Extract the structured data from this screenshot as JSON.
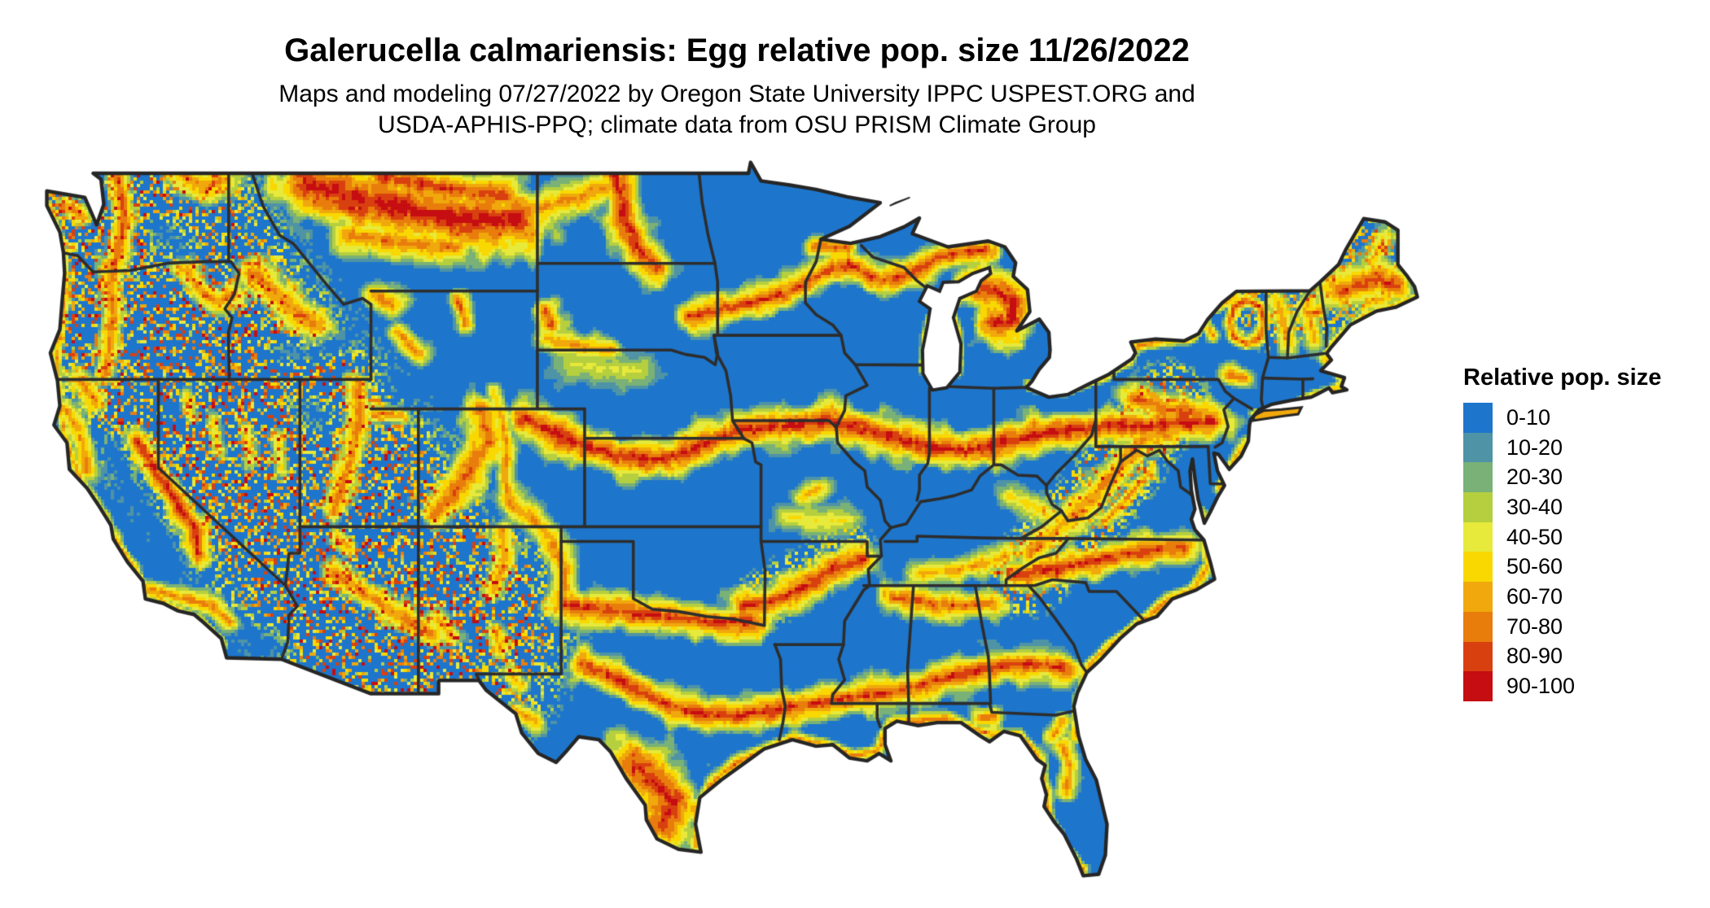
{
  "header": {
    "title": "Galerucella calmariensis: Egg relative pop. size 11/26/2022",
    "subtitle_line1": "Maps and modeling 07/27/2022 by Oregon State University IPPC USPEST.ORG and",
    "subtitle_line2": "USDA-APHIS-PPQ; climate data from OSU PRISM Climate Group"
  },
  "legend": {
    "title": "Relative pop. size",
    "entries": [
      {
        "label": "0-10",
        "color": "#1d76cc"
      },
      {
        "label": "10-20",
        "color": "#4f93a6"
      },
      {
        "label": "20-30",
        "color": "#79b177"
      },
      {
        "label": "30-40",
        "color": "#b5cf3f"
      },
      {
        "label": "40-50",
        "color": "#e7e93b"
      },
      {
        "label": "50-60",
        "color": "#f8d800"
      },
      {
        "label": "60-70",
        "color": "#f0a80c"
      },
      {
        "label": "70-80",
        "color": "#e87d0c"
      },
      {
        "label": "80-90",
        "color": "#d9400f"
      },
      {
        "label": "90-100",
        "color": "#c50d12"
      }
    ]
  },
  "map": {
    "type": "choropleth-raster",
    "region": "Continental United States",
    "value_name": "Relative pop. size",
    "value_range": [
      0,
      100
    ],
    "base_color": "#1d76cc",
    "state_border_color": "#2d2d2d",
    "coast_border_color": "#262626",
    "water_background_color": "#ffffff",
    "hotspot_regions": [
      "Northern Rockies / Montana high plains",
      "Missouri Coteau (North Dakota)",
      "Black Hills (SD)",
      "Upper Midwest belt (eastern SD - MN - WI - Upper MI)",
      "Northern Lower Michigan",
      "Central belt (Kansas - Missouri - Illinois - Indiana - Ohio - Pennsylvania)",
      "Ozark-Ouachita belt (AR / MO)",
      "Red River belt (TX / OK)",
      "Gulf coastal plain belt (central TX - LA - MS - AL - GA)",
      "South Texas",
      "Appalachians (WV / VA / TN)",
      "North Carolina piedmont belt",
      "Adirondack ring (NY), Catskills, White Mountains",
      "Central-eastern Maine",
      "Cascades and Olympics (WA / OR)",
      "Sierra Nevada (CA)",
      "Colorado Rockies, Wasatch (UT), Mogollon Rim (AZ)",
      "Gulf and Atlantic coastal fringe",
      "Florida central ridge and panhandle"
    ]
  }
}
